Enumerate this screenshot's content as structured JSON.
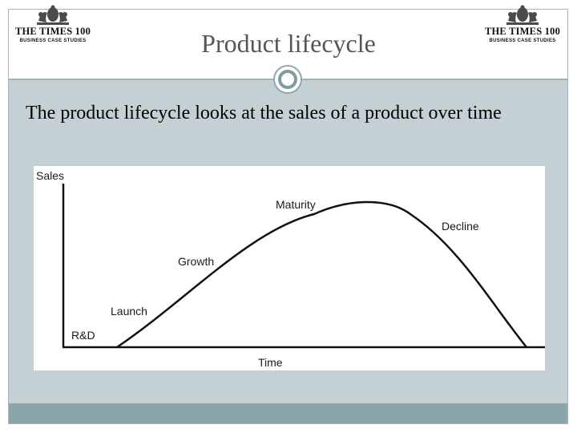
{
  "header": {
    "title": "Product lifecycle",
    "logo_left": {
      "line1": "THE TIMES 100",
      "line2": "BUSINESS CASE STUDIES"
    },
    "logo_right": {
      "line1": "THE TIMES 100",
      "line2": "BUSINESS CASE STUDIES"
    }
  },
  "body": {
    "text": "The product lifecycle looks at the sales of a product over time"
  },
  "diagram": {
    "y_axis_label": "Sales",
    "x_axis_label": "Time",
    "stages": [
      "R&D",
      "Launch",
      "Growth",
      "Maturity",
      "Decline"
    ]
  },
  "colors": {
    "body_panel": "#c5d0d4",
    "footer_band": "#89a7ab",
    "accent_ring": "#7e9ba1",
    "title_text": "#555555"
  },
  "icons": {
    "logo_crest": "times-crest-icon",
    "divider_ornament": "ring-ornament-icon"
  }
}
